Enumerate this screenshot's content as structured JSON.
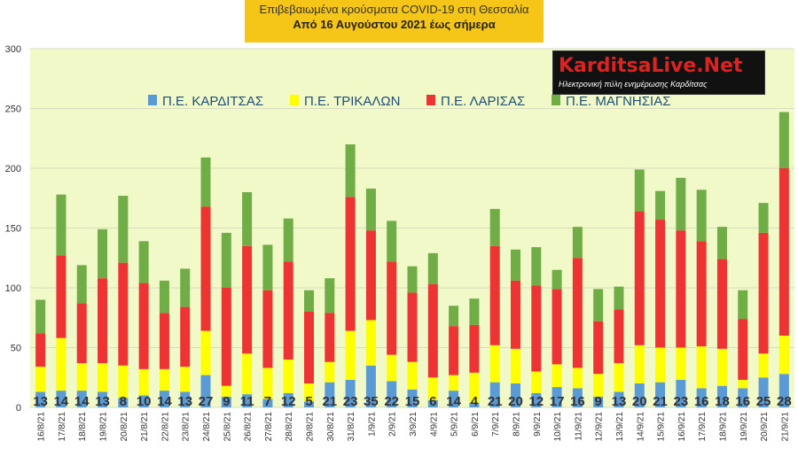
{
  "header": {
    "line1": "Επιβεβαιωμένα κρούσματα COVID-19 στη Θεσσαλία",
    "line2": "Από 16 Αυγούστου 2021 έως σήμερα"
  },
  "logo": {
    "brand": "KarditsaLive.Net",
    "tagline": "Ηλεκτρονική πύλη ενημέρωσης Καρδίτσας"
  },
  "colors": {
    "karditsa": "#5b9bd5",
    "trikala": "#ffff00",
    "larisa": "#ee3333",
    "magnisia": "#70ad47",
    "plot_bg": "#f1f9c9",
    "grid": "#d6dcc0"
  },
  "chart_data": {
    "type": "bar",
    "stacked": true,
    "ylim": [
      0,
      300
    ],
    "yticks": [
      0,
      50,
      100,
      150,
      200,
      250,
      300
    ],
    "grid": true,
    "legend_position": "top",
    "categories": [
      "16/8/21",
      "17/8/21",
      "18/8/21",
      "19/8/21",
      "20/8/21",
      "21/8/21",
      "22/8/21",
      "23/8/21",
      "24/8/21",
      "25/8/21",
      "26/8/21",
      "27/8/21",
      "28/8/21",
      "29/8/21",
      "30/8/21",
      "31/8/21",
      "1/9/21",
      "2/9/21",
      "3/9/21",
      "4/9/21",
      "5/9/21",
      "6/9/21",
      "7/9/21",
      "8/9/21",
      "9/9/21",
      "10/9/21",
      "11/9/21",
      "12/9/21",
      "13/9/21",
      "14/9/21",
      "15/9/21",
      "16/9/21",
      "17/9/21",
      "18/9/21",
      "19/9/21",
      "20/9/21",
      "21/9/21"
    ],
    "series": [
      {
        "name": "Π.Ε. ΚΑΡΔΙΤΣΑΣ",
        "values": [
          13,
          14,
          14,
          13,
          8,
          10,
          14,
          13,
          27,
          9,
          11,
          7,
          12,
          5,
          21,
          23,
          35,
          22,
          15,
          6,
          14,
          4,
          21,
          20,
          12,
          17,
          16,
          9,
          13,
          20,
          21,
          23,
          16,
          18,
          16,
          25,
          28
        ]
      },
      {
        "name": "Π.Ε. ΤΡΙΚΑΛΩΝ",
        "values": [
          21,
          44,
          23,
          24,
          27,
          22,
          18,
          21,
          37,
          9,
          34,
          26,
          28,
          15,
          17,
          41,
          38,
          22,
          23,
          19,
          13,
          25,
          31,
          29,
          18,
          19,
          17,
          19,
          24,
          32,
          29,
          27,
          35,
          31,
          7,
          20,
          32
        ]
      },
      {
        "name": "Π.Ε. ΛΑΡΙΣΑΣ",
        "values": [
          28,
          69,
          50,
          71,
          86,
          72,
          47,
          50,
          104,
          82,
          90,
          65,
          82,
          60,
          41,
          112,
          75,
          78,
          58,
          78,
          41,
          40,
          83,
          57,
          72,
          63,
          92,
          44,
          45,
          112,
          107,
          98,
          88,
          75,
          51,
          101,
          140
        ]
      },
      {
        "name": "Π.Ε. ΜΑΓΝΗΣΙΑΣ",
        "values": [
          28,
          51,
          32,
          41,
          56,
          35,
          27,
          32,
          41,
          46,
          45,
          38,
          36,
          18,
          29,
          44,
          35,
          34,
          22,
          26,
          17,
          22,
          31,
          26,
          32,
          16,
          26,
          27,
          19,
          35,
          24,
          44,
          43,
          27,
          24,
          25,
          47
        ]
      }
    ],
    "data_labels": "Π.Ε. ΚΑΡΔΙΤΣΑΣ"
  }
}
